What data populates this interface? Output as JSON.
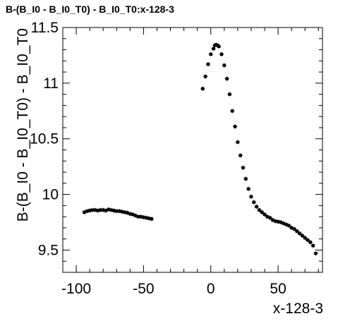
{
  "chart_data": {
    "type": "scatter",
    "title": "B-(B_I0 - B_I0_T0) - B_I0_T0:x-128-3",
    "xlabel": "x-128-3",
    "ylabel": "B-(B_I0 - B_I0_T0) - B_I0_T0",
    "xlim": [
      -110,
      83
    ],
    "ylim": [
      9.3,
      11.5
    ],
    "xticks": [
      -100,
      -50,
      0,
      50
    ],
    "xtick_labels": [
      "-100",
      "-50",
      "0",
      "50"
    ],
    "yticks": [
      9.5,
      10,
      10.5,
      11,
      11.5
    ],
    "ytick_labels": [
      "9.5",
      "10",
      "10.5",
      "11",
      "11.5"
    ],
    "grid": false,
    "marker_color": "#000000",
    "series": [
      {
        "x": [
          -94,
          -92,
          -90,
          -88,
          -86,
          -84,
          -82,
          -80,
          -78,
          -76,
          -74,
          -72,
          -70,
          -68,
          -66,
          -64,
          -62,
          -60,
          -58,
          -56,
          -54,
          -52,
          -50,
          -48,
          -46,
          -44
        ],
        "y": [
          9.84,
          9.85,
          9.855,
          9.86,
          9.86,
          9.855,
          9.86,
          9.86,
          9.855,
          9.865,
          9.86,
          9.855,
          9.85,
          9.85,
          9.845,
          9.84,
          9.835,
          9.825,
          9.82,
          9.81,
          9.8,
          9.8,
          9.795,
          9.79,
          9.785,
          9.78
        ]
      },
      {
        "x": [
          -6,
          -4,
          -2,
          0,
          2,
          3,
          4,
          5,
          6,
          8,
          10,
          12,
          14,
          16,
          18,
          20,
          22,
          24,
          26,
          28,
          30,
          32,
          34,
          36,
          38,
          40,
          42,
          44,
          46,
          48,
          50,
          52,
          54,
          56,
          58,
          60,
          62,
          64,
          66,
          68,
          70,
          72,
          74,
          76,
          78
        ],
        "y": [
          10.95,
          11.06,
          11.17,
          11.26,
          11.31,
          11.34,
          11.345,
          11.34,
          11.33,
          11.26,
          11.16,
          11.04,
          10.9,
          10.75,
          10.61,
          10.47,
          10.35,
          10.24,
          10.14,
          10.05,
          9.98,
          9.93,
          9.89,
          9.86,
          9.84,
          9.82,
          9.8,
          9.79,
          9.77,
          9.76,
          9.755,
          9.75,
          9.74,
          9.73,
          9.72,
          9.7,
          9.69,
          9.67,
          9.65,
          9.63,
          9.61,
          9.59,
          9.57,
          9.54,
          9.47
        ]
      }
    ]
  }
}
